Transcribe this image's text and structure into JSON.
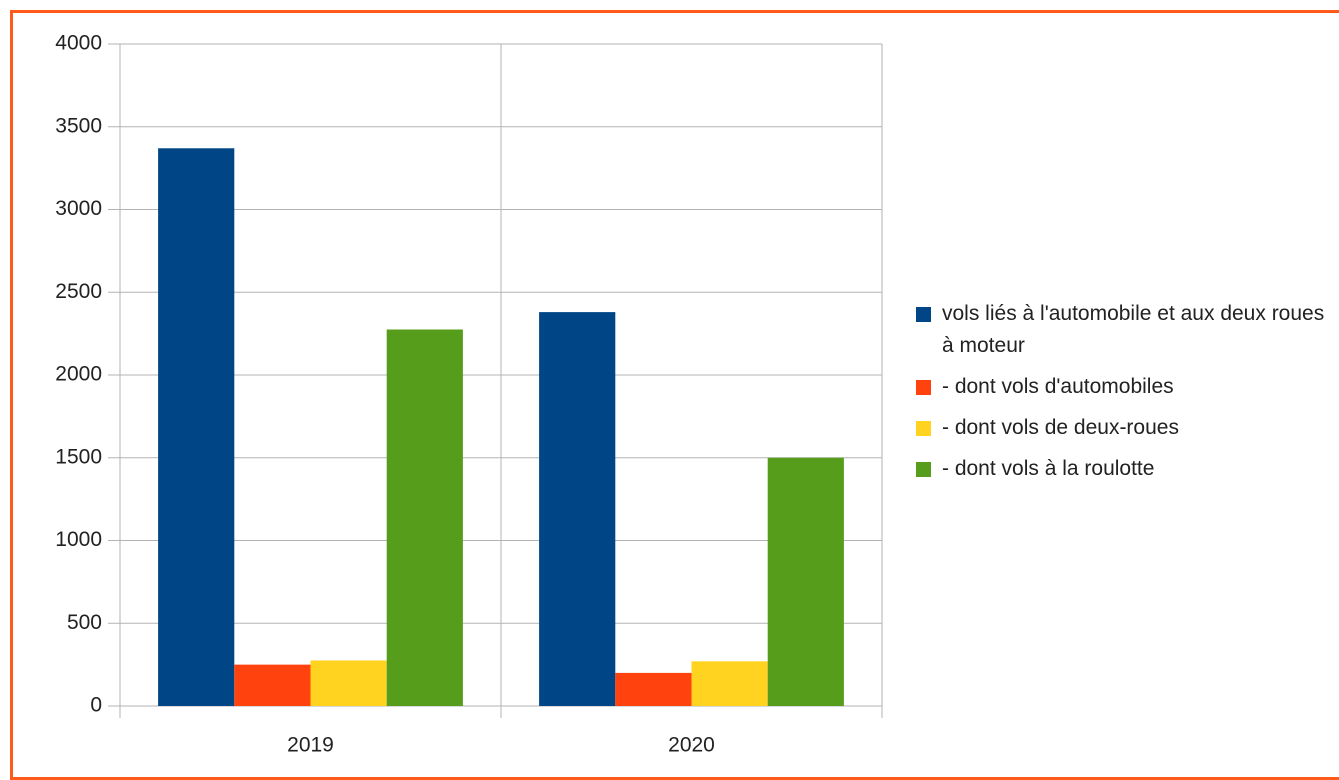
{
  "chart_data": {
    "type": "bar",
    "categories": [
      "2019",
      "2020"
    ],
    "series": [
      {
        "name": "vols liés à l'automobile et aux deux roues à moteur",
        "color": "#004586",
        "values": [
          3370,
          2380
        ]
      },
      {
        "name": "- dont vols d'automobiles",
        "color": "#ff420e",
        "values": [
          250,
          200
        ]
      },
      {
        "name": "- dont vols de deux-roues",
        "color": "#ffd320",
        "values": [
          275,
          270
        ]
      },
      {
        "name": "- dont vols à la roulotte",
        "color": "#579d1c",
        "values": [
          2275,
          1500
        ]
      }
    ],
    "ylim": [
      0,
      4000
    ],
    "yticks": [
      0,
      500,
      1000,
      1500,
      2000,
      2500,
      3000,
      3500,
      4000
    ],
    "grid": true,
    "legend": "right"
  }
}
